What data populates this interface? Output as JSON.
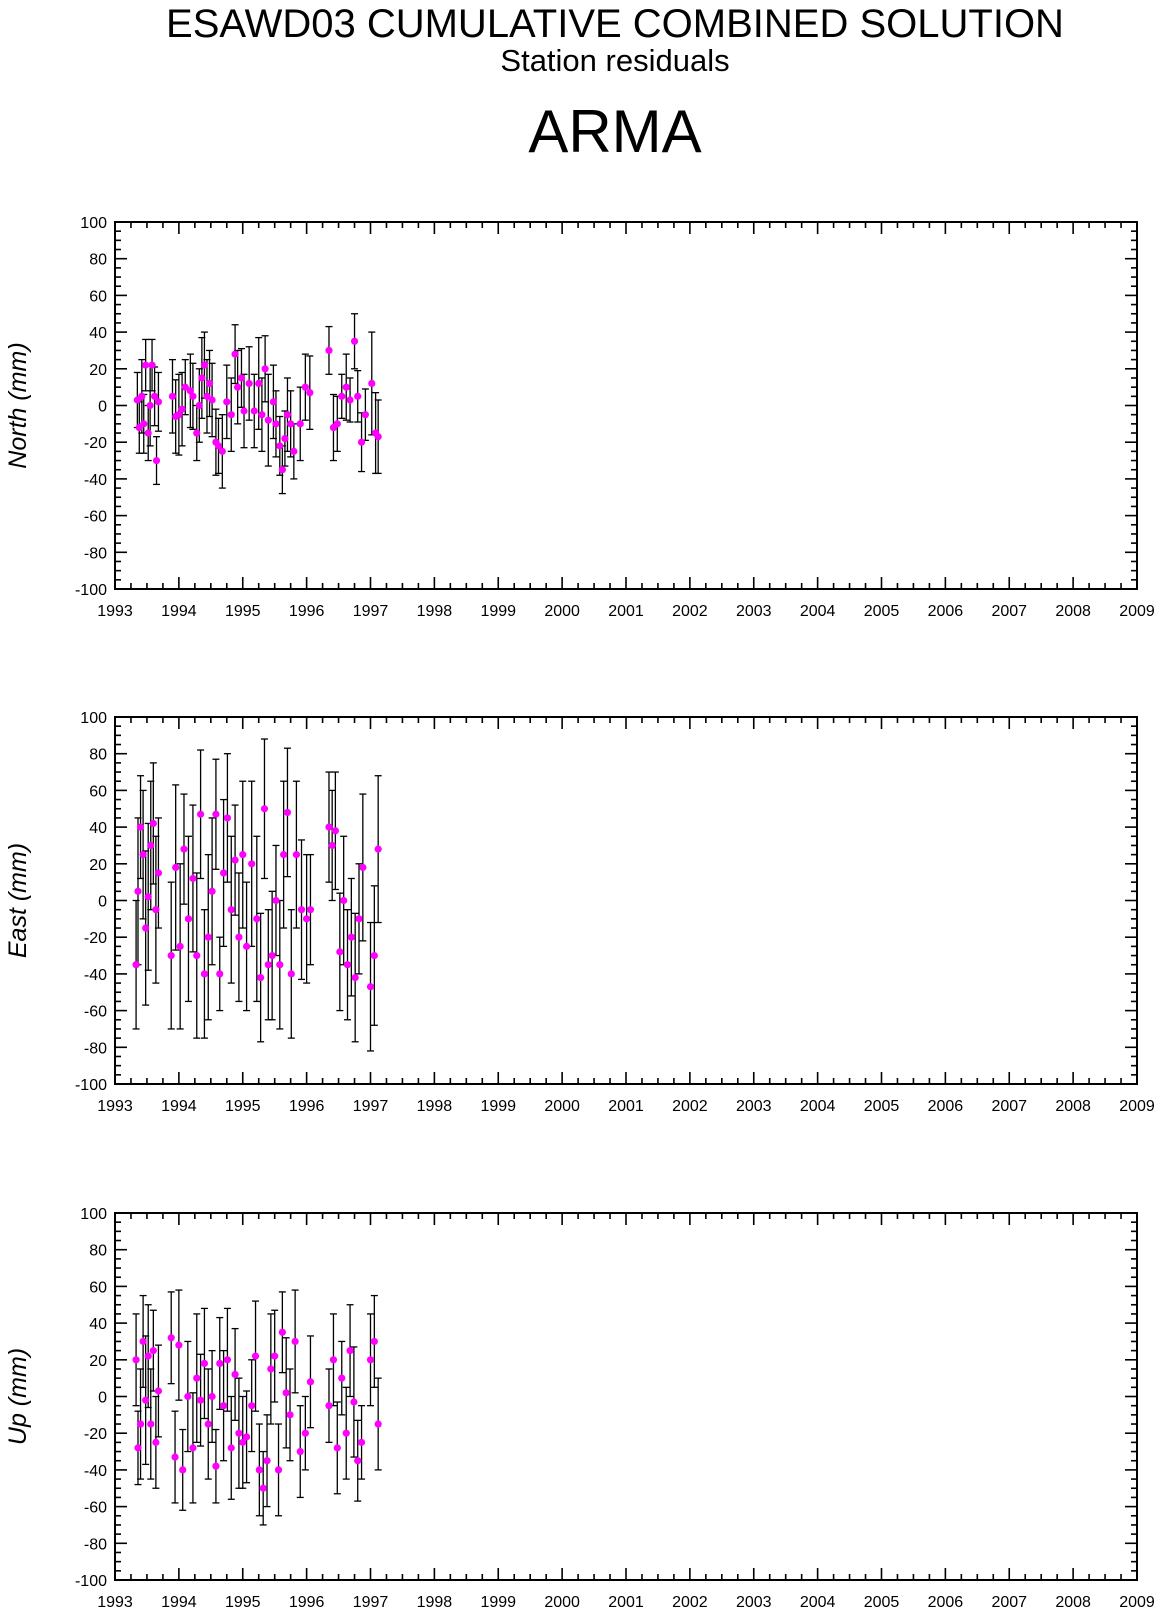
{
  "header": {
    "title": "ESAWD03 CUMULATIVE COMBINED SOLUTION",
    "subtitle": "Station residuals",
    "station": "ARMA"
  },
  "colors": {
    "point": "#ff00ff",
    "errorbar": "#000000",
    "axis": "#000000"
  },
  "chart_data": [
    {
      "type": "scatter",
      "ylabel": "North (mm)",
      "xlim": [
        1993,
        2009
      ],
      "ylim": [
        -100,
        100
      ],
      "xticks": [
        "1993",
        "1994",
        "1995",
        "1996",
        "1997",
        "1998",
        "1999",
        "2000",
        "2001",
        "2002",
        "2003",
        "2004",
        "2005",
        "2006",
        "2007",
        "2008",
        "2009"
      ],
      "yticks": [
        "100",
        "80",
        "60",
        "40",
        "20",
        "0",
        "-20",
        "-40",
        "-60",
        "-80",
        "-100"
      ],
      "grid": false,
      "series": [
        {
          "x": [
            1993.35,
            1993.38,
            1993.42,
            1993.45,
            1993.48,
            1993.52,
            1993.55,
            1993.58,
            1993.62,
            1993.65,
            1993.68,
            1993.9,
            1993.95,
            1994.0,
            1994.05,
            1994.1,
            1994.18,
            1994.22,
            1994.28,
            1994.32,
            1994.36,
            1994.4,
            1994.44,
            1994.48,
            1994.52,
            1994.58,
            1994.62,
            1994.68,
            1994.75,
            1994.82,
            1994.88,
            1994.92,
            1994.98,
            1995.02,
            1995.1,
            1995.18,
            1995.25,
            1995.3,
            1995.35,
            1995.4,
            1995.48,
            1995.52,
            1995.58,
            1995.62,
            1995.66,
            1995.7,
            1995.75,
            1995.8,
            1995.9,
            1995.98,
            1996.05,
            1996.35,
            1996.42,
            1996.48,
            1996.55,
            1996.62,
            1996.68,
            1996.75,
            1996.8,
            1996.86,
            1996.92,
            1997.02,
            1997.08,
            1997.12
          ],
          "y": [
            3,
            -12,
            5,
            -10,
            22,
            -15,
            0,
            22,
            5,
            -30,
            2,
            5,
            -6,
            -5,
            -2,
            10,
            8,
            5,
            -15,
            0,
            15,
            22,
            5,
            12,
            3,
            -20,
            -22,
            -25,
            2,
            -5,
            28,
            10,
            15,
            -3,
            12,
            -3,
            12,
            -5,
            20,
            -8,
            2,
            -10,
            -22,
            -35,
            -18,
            -5,
            -10,
            -25,
            -10,
            10,
            7,
            30,
            -12,
            -10,
            5,
            10,
            3,
            35,
            5,
            -20,
            -5,
            12,
            -15,
            -17
          ],
          "err": [
            15,
            14,
            20,
            16,
            14,
            15,
            22,
            14,
            16,
            13,
            16,
            20,
            20,
            22,
            20,
            15,
            20,
            18,
            15,
            20,
            22,
            18,
            20,
            18,
            20,
            18,
            15,
            20,
            20,
            20,
            16,
            20,
            16,
            20,
            20,
            20,
            25,
            20,
            18,
            25,
            20,
            18,
            16,
            13,
            15,
            20,
            18,
            15,
            20,
            18,
            20,
            13,
            18,
            15,
            12,
            18,
            12,
            15,
            14,
            16,
            14,
            28,
            22,
            20
          ]
        }
      ]
    },
    {
      "type": "scatter",
      "ylabel": "East (mm)",
      "xlim": [
        1993,
        2009
      ],
      "ylim": [
        -100,
        100
      ],
      "xticks": [
        "1993",
        "1994",
        "1995",
        "1996",
        "1997",
        "1998",
        "1999",
        "2000",
        "2001",
        "2002",
        "2003",
        "2004",
        "2005",
        "2006",
        "2007",
        "2008",
        "2009"
      ],
      "yticks": [
        "100",
        "80",
        "60",
        "40",
        "20",
        "0",
        "-20",
        "-40",
        "-60",
        "-80",
        "-100"
      ],
      "grid": false,
      "series": [
        {
          "x": [
            1993.33,
            1993.36,
            1993.4,
            1993.44,
            1993.48,
            1993.52,
            1993.56,
            1993.6,
            1993.64,
            1993.68,
            1993.88,
            1993.95,
            1994.02,
            1994.08,
            1994.15,
            1994.22,
            1994.28,
            1994.34,
            1994.4,
            1994.46,
            1994.52,
            1994.58,
            1994.64,
            1994.7,
            1994.76,
            1994.82,
            1994.88,
            1994.94,
            1995.0,
            1995.06,
            1995.14,
            1995.22,
            1995.28,
            1995.34,
            1995.4,
            1995.46,
            1995.52,
            1995.58,
            1995.64,
            1995.7,
            1995.76,
            1995.84,
            1995.92,
            1996.0,
            1996.06,
            1996.35,
            1996.4,
            1996.45,
            1996.52,
            1996.58,
            1996.64,
            1996.7,
            1996.76,
            1996.82,
            1996.88,
            1997.0,
            1997.06,
            1997.12
          ],
          "y": [
            -35,
            5,
            40,
            25,
            -15,
            2,
            30,
            42,
            -5,
            15,
            -30,
            18,
            -25,
            28,
            -10,
            12,
            -30,
            47,
            -40,
            -20,
            5,
            47,
            -40,
            15,
            45,
            -5,
            22,
            -20,
            25,
            -25,
            20,
            -10,
            -42,
            50,
            -35,
            -30,
            0,
            -35,
            25,
            48,
            -40,
            25,
            -5,
            -10,
            -5,
            40,
            30,
            38,
            -28,
            0,
            -35,
            -20,
            -42,
            -10,
            18,
            -47,
            -30,
            28
          ],
          "err": [
            35,
            40,
            28,
            35,
            42,
            40,
            35,
            33,
            40,
            30,
            40,
            45,
            45,
            30,
            45,
            40,
            45,
            35,
            35,
            45,
            40,
            30,
            20,
            40,
            35,
            40,
            30,
            35,
            40,
            35,
            45,
            45,
            35,
            38,
            30,
            35,
            30,
            35,
            40,
            35,
            35,
            40,
            38,
            35,
            30,
            30,
            30,
            32,
            32,
            35,
            30,
            32,
            35,
            30,
            40,
            35,
            38,
            40
          ]
        }
      ]
    },
    {
      "type": "scatter",
      "ylabel": "Up (mm)",
      "xlim": [
        1993,
        2009
      ],
      "ylim": [
        -100,
        100
      ],
      "xticks": [
        "1993",
        "1994",
        "1995",
        "1996",
        "1997",
        "1998",
        "1999",
        "2000",
        "2001",
        "2002",
        "2003",
        "2004",
        "2005",
        "2006",
        "2007",
        "2008",
        "2009"
      ],
      "yticks": [
        "100",
        "80",
        "60",
        "40",
        "20",
        "0",
        "-20",
        "-40",
        "-60",
        "-80",
        "-100"
      ],
      "grid": false,
      "series": [
        {
          "x": [
            1993.33,
            1993.36,
            1993.4,
            1993.44,
            1993.48,
            1993.52,
            1993.56,
            1993.6,
            1993.64,
            1993.68,
            1993.88,
            1993.94,
            1994.0,
            1994.06,
            1994.14,
            1994.22,
            1994.28,
            1994.34,
            1994.4,
            1994.46,
            1994.52,
            1994.58,
            1994.64,
            1994.7,
            1994.76,
            1994.82,
            1994.88,
            1994.94,
            1995.0,
            1995.06,
            1995.14,
            1995.2,
            1995.26,
            1995.32,
            1995.38,
            1995.44,
            1995.5,
            1995.56,
            1995.62,
            1995.68,
            1995.74,
            1995.82,
            1995.9,
            1995.98,
            1996.06,
            1996.35,
            1996.42,
            1996.48,
            1996.55,
            1996.62,
            1996.68,
            1996.74,
            1996.8,
            1996.86,
            1997.0,
            1997.06,
            1997.12
          ],
          "y": [
            20,
            -28,
            -15,
            30,
            -2,
            22,
            -15,
            25,
            -25,
            3,
            32,
            -33,
            28,
            -40,
            0,
            -28,
            10,
            -2,
            18,
            -15,
            0,
            -38,
            18,
            -5,
            20,
            -28,
            12,
            -20,
            -25,
            -22,
            -5,
            22,
            -40,
            -50,
            -35,
            15,
            22,
            -40,
            35,
            2,
            -10,
            30,
            -30,
            -20,
            8,
            -5,
            20,
            -28,
            10,
            -20,
            25,
            -3,
            -35,
            -25,
            20,
            30,
            -15
          ],
          "err": [
            25,
            20,
            30,
            25,
            35,
            28,
            30,
            22,
            25,
            25,
            25,
            25,
            30,
            22,
            30,
            30,
            35,
            25,
            30,
            30,
            25,
            20,
            25,
            30,
            28,
            28,
            25,
            30,
            25,
            25,
            25,
            30,
            25,
            20,
            25,
            30,
            25,
            25,
            22,
            30,
            25,
            28,
            25,
            20,
            25,
            20,
            25,
            25,
            20,
            25,
            25,
            30,
            22,
            20,
            25,
            25,
            25
          ]
        }
      ]
    }
  ]
}
